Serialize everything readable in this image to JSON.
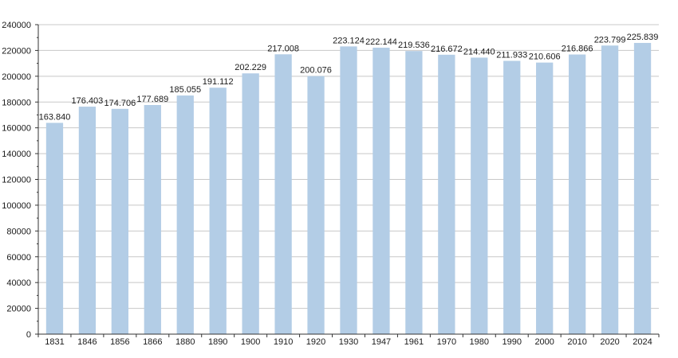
{
  "chart_data": {
    "type": "bar",
    "title": "",
    "xlabel": "",
    "ylabel": "",
    "ylim": [
      0,
      240000
    ],
    "yticks": [
      0,
      20000,
      40000,
      60000,
      80000,
      100000,
      120000,
      140000,
      160000,
      180000,
      200000,
      220000,
      240000
    ],
    "ytick_labels": [
      "0",
      "20000",
      "40000",
      "60000",
      "80000",
      "100000",
      "120000",
      "140000",
      "160000",
      "180000",
      "200000",
      "220000",
      "240000"
    ],
    "grid": true,
    "legend": "none",
    "categories": [
      "1831",
      "1846",
      "1856",
      "1866",
      "1880",
      "1890",
      "1900",
      "1910",
      "1920",
      "1930",
      "1947",
      "1961",
      "1970",
      "1980",
      "1990",
      "2000",
      "2010",
      "2020",
      "2024"
    ],
    "values": [
      163840,
      176403,
      174706,
      177689,
      185055,
      191112,
      202229,
      217008,
      200076,
      223124,
      222144,
      219536,
      216672,
      214440,
      211933,
      210606,
      216866,
      223799,
      225839
    ],
    "data_labels": [
      "163.840",
      "176.403",
      "174.706",
      "177.689",
      "185.055",
      "191.112",
      "202.229",
      "217.008",
      "200.076",
      "223.124",
      "222.144",
      "219.536",
      "216.672",
      "214.440",
      "211.933",
      "210.606",
      "216.866",
      "223.799",
      "225.839"
    ],
    "colors": {
      "bar": "#b3cde6",
      "grid": "#c8c8c8",
      "axis": "#333333"
    }
  }
}
